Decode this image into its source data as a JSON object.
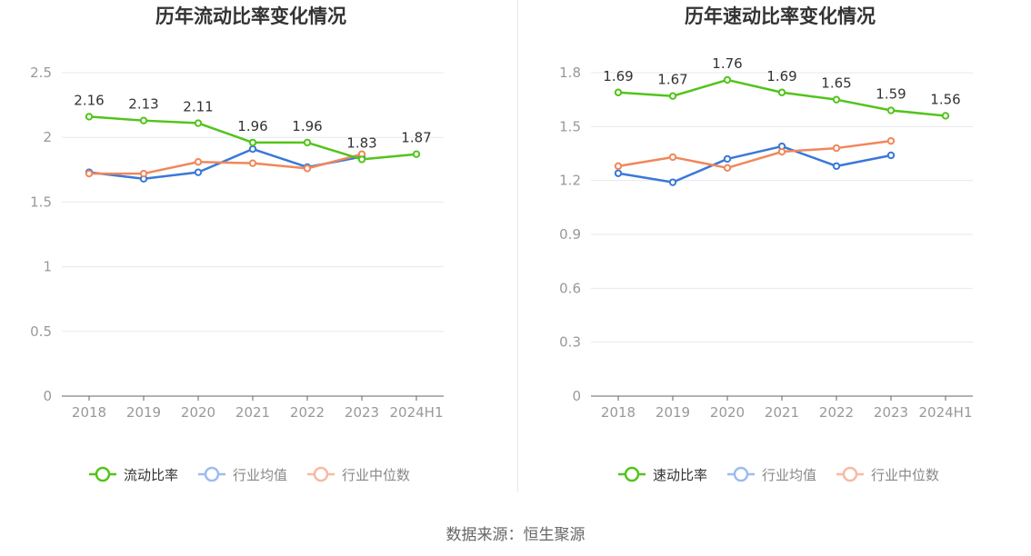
{
  "source_text": "数据来源：恒生聚源",
  "colors": {
    "main": "#52c41a",
    "industry_avg": "#3a78d8",
    "industry_median": "#f0875a",
    "grid": "#e6e8ee",
    "axis": "#666666",
    "tick_text": "#999999",
    "title": "#333333"
  },
  "chart_data": [
    {
      "type": "line",
      "title": "历年流动比率变化情况",
      "xlabel": "",
      "ylabel": "",
      "categories": [
        "2018",
        "2019",
        "2020",
        "2021",
        "2022",
        "2023",
        "2024H1"
      ],
      "ylim": [
        0,
        2.5
      ],
      "yticks": [
        "0",
        "0.5",
        "1",
        "1.5",
        "2",
        "2.5"
      ],
      "grid": true,
      "legend": "bottom",
      "series": [
        {
          "name": "流动比率",
          "values": [
            2.16,
            2.13,
            2.11,
            1.96,
            1.96,
            1.83,
            1.87
          ],
          "labels": [
            "2.16",
            "2.13",
            "2.11",
            "1.96",
            "1.96",
            "1.83",
            "1.87"
          ],
          "color": "#52c41a"
        },
        {
          "name": "行业均值",
          "values": [
            1.73,
            1.68,
            1.73,
            1.91,
            1.77,
            1.85,
            null
          ],
          "color": "#3a78d8"
        },
        {
          "name": "行业中位数",
          "values": [
            1.72,
            1.72,
            1.81,
            1.8,
            1.76,
            1.87,
            null
          ],
          "color": "#f0875a"
        }
      ]
    },
    {
      "type": "line",
      "title": "历年速动比率变化情况",
      "xlabel": "",
      "ylabel": "",
      "categories": [
        "2018",
        "2019",
        "2020",
        "2021",
        "2022",
        "2023",
        "2024H1"
      ],
      "ylim": [
        0,
        1.8
      ],
      "yticks": [
        "0",
        "0.3",
        "0.6",
        "0.9",
        "1.2",
        "1.5",
        "1.8"
      ],
      "grid": true,
      "legend": "bottom",
      "series": [
        {
          "name": "速动比率",
          "values": [
            1.69,
            1.67,
            1.76,
            1.69,
            1.65,
            1.59,
            1.56
          ],
          "labels": [
            "1.69",
            "1.67",
            "1.76",
            "1.69",
            "1.65",
            "1.59",
            "1.56"
          ],
          "color": "#52c41a"
        },
        {
          "name": "行业均值",
          "values": [
            1.24,
            1.19,
            1.32,
            1.39,
            1.28,
            1.34,
            null
          ],
          "color": "#3a78d8"
        },
        {
          "name": "行业中位数",
          "values": [
            1.28,
            1.33,
            1.27,
            1.36,
            1.38,
            1.42,
            null
          ],
          "color": "#f0875a"
        }
      ]
    }
  ]
}
